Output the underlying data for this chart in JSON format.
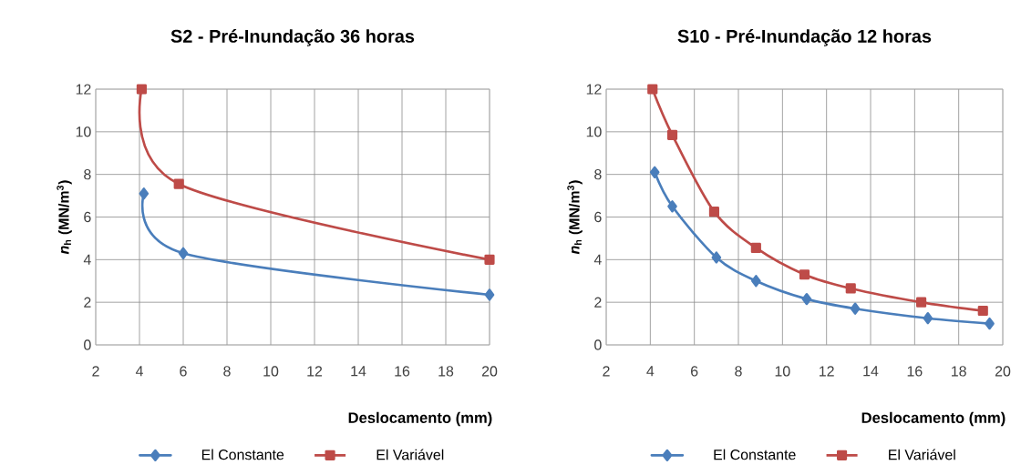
{
  "chart_data": [
    {
      "type": "line",
      "title": "S2 - Pré-Inundação  36 horas",
      "xlabel": "Deslocamento (mm)",
      "ylabel": "*n*$_{h}$ (MN/m$^{3}$)",
      "xlim": [
        2,
        20
      ],
      "ylim": [
        0,
        12
      ],
      "xticks": [
        2,
        4,
        6,
        8,
        10,
        12,
        14,
        16,
        18,
        20
      ],
      "yticks": [
        0,
        2,
        4,
        6,
        8,
        10,
        12
      ],
      "grid": true,
      "legend": "bottom",
      "line_style": "solid",
      "series": [
        {
          "name": "El Constante",
          "color": "#4a7ebb",
          "marker": "diamond",
          "x": [
            4.2,
            6,
            20
          ],
          "values": [
            7.1,
            4.3,
            2.35
          ]
        },
        {
          "name": "El Variável",
          "color": "#be4b48",
          "marker": "square",
          "x": [
            4.1,
            5.8,
            20
          ],
          "values": [
            12,
            7.55,
            4
          ]
        }
      ]
    },
    {
      "type": "line",
      "title": "S10 - Pré-Inundação  12 horas",
      "xlabel": "Deslocamento (mm)",
      "ylabel": "*n*$_{h}$ (MN/m$^{3}$)",
      "xlim": [
        2,
        20
      ],
      "ylim": [
        0,
        12
      ],
      "xticks": [
        2,
        4,
        6,
        8,
        10,
        12,
        14,
        16,
        18,
        20
      ],
      "yticks": [
        0,
        2,
        4,
        6,
        8,
        10,
        12
      ],
      "grid": true,
      "legend": "bottom",
      "line_style": "solid",
      "series": [
        {
          "name": "El Constante",
          "color": "#4a7ebb",
          "marker": "diamond",
          "x": [
            4.2,
            5,
            7,
            8.8,
            11.1,
            13.3,
            16.6,
            19.4
          ],
          "values": [
            8.1,
            6.5,
            4.1,
            3.0,
            2.15,
            1.7,
            1.25,
            1.0
          ]
        },
        {
          "name": "El Variável",
          "color": "#be4b48",
          "marker": "square",
          "x": [
            4.1,
            5,
            6.9,
            8.8,
            11,
            13.1,
            16.3,
            19.1
          ],
          "values": [
            12,
            9.85,
            6.25,
            4.55,
            3.3,
            2.65,
            2.0,
            1.6
          ]
        }
      ]
    }
  ]
}
